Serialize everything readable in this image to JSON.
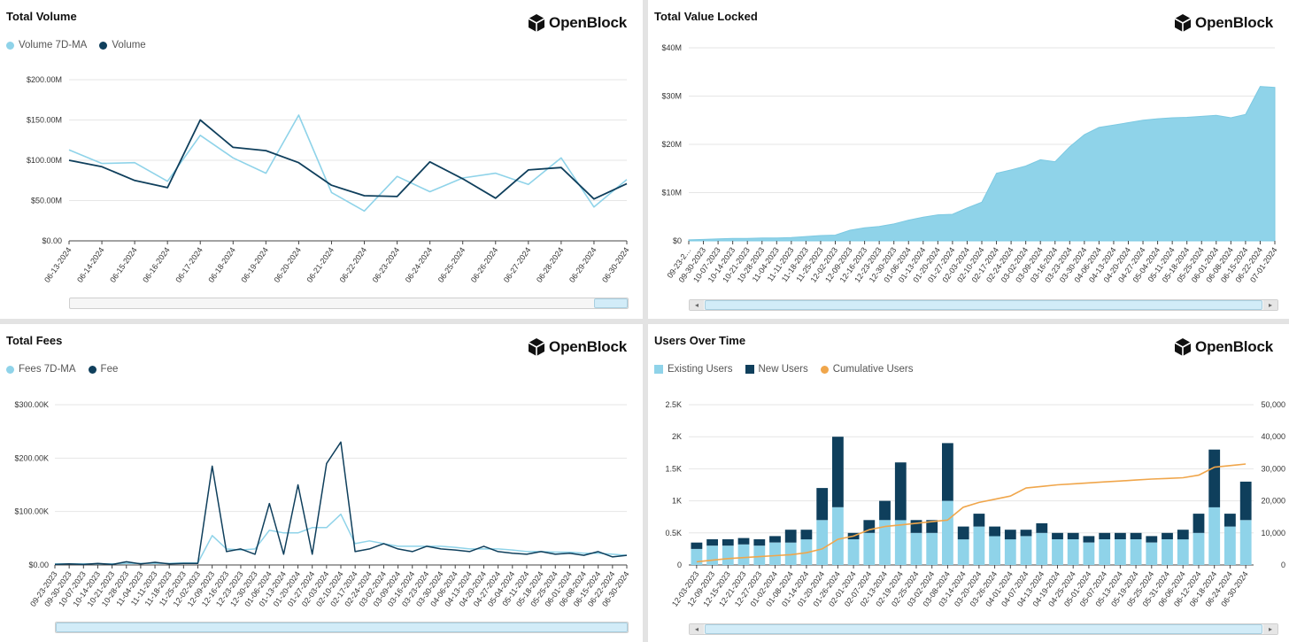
{
  "panels": {
    "volume": {
      "title": "Total Volume",
      "logo_text": "OpenBlock",
      "legend": [
        "Volume 7D-MA",
        "Volume"
      ]
    },
    "tvl": {
      "title": "Total Value Locked",
      "logo_text": "OpenBlock"
    },
    "fees": {
      "title": "Total Fees",
      "logo_text": "OpenBlock",
      "legend": [
        "Fees 7D-MA",
        "Fee"
      ]
    },
    "users": {
      "title": "Users Over Time",
      "logo_text": "OpenBlock",
      "legend": [
        "Existing Users",
        "New Users",
        "Cumulative Users"
      ]
    }
  },
  "colors": {
    "light": "#8fd3e9",
    "dark": "#0f3f5c",
    "orange": "#f0a64b",
    "grid": "#e6e6e6"
  },
  "chart_data": [
    {
      "type": "line",
      "title": "Total Volume",
      "x": [
        "06-13-2024",
        "06-14-2024",
        "06-15-2024",
        "06-16-2024",
        "06-17-2024",
        "06-18-2024",
        "06-19-2024",
        "06-20-2024",
        "06-21-2024",
        "06-22-2024",
        "06-23-2024",
        "06-24-2024",
        "06-25-2024",
        "06-26-2024",
        "06-27-2024",
        "06-28-2024",
        "06-29-2024",
        "06-30-2024"
      ],
      "yticks": [
        "$0.00",
        "$50.00M",
        "$100.00M",
        "$150.00M",
        "$200.00M"
      ],
      "ylim": [
        0,
        200
      ],
      "series": [
        {
          "name": "Volume 7D-MA",
          "values": [
            113,
            96,
            97,
            74,
            131,
            103,
            84,
            156,
            60,
            37,
            80,
            61,
            78,
            84,
            70,
            103,
            42,
            76
          ]
        },
        {
          "name": "Volume",
          "values": [
            100,
            92,
            75,
            66,
            150,
            116,
            112,
            97,
            69,
            56,
            55,
            98,
            77,
            53,
            88,
            91,
            52,
            71
          ]
        }
      ],
      "grid": true,
      "legend": "top-left"
    },
    {
      "type": "area",
      "title": "Total Value Locked",
      "x_labels": [
        "09-23-2…",
        "09-30-2023",
        "10-07-2023",
        "10-14-2023",
        "10-21-2023",
        "10-28-2023",
        "11-04-2023",
        "11-11-2023",
        "11-18-2023",
        "11-25-2023",
        "12-02-2023",
        "12-09-2023",
        "12-16-2023",
        "12-23-2023",
        "12-30-2023",
        "01-06-2024",
        "01-13-2024",
        "01-20-2024",
        "01-27-2024",
        "02-03-2024",
        "02-10-2024",
        "02-17-2024",
        "02-24-2024",
        "03-02-2024",
        "03-09-2024",
        "03-16-2024",
        "03-23-2024",
        "03-30-2024",
        "04-06-2024",
        "04-13-2024",
        "04-20-2024",
        "04-27-2024",
        "05-04-2024",
        "05-11-2024",
        "05-18-2024",
        "05-25-2024",
        "06-01-2024",
        "06-08-2024",
        "06-15-2024",
        "06-22-2024",
        "07-01-2024"
      ],
      "yticks": [
        "$0",
        "$10M",
        "$20M",
        "$30M",
        "$40M"
      ],
      "ylim": [
        0,
        40
      ],
      "values": [
        0.2,
        0.3,
        0.4,
        0.5,
        0.5,
        0.6,
        0.6,
        0.7,
        0.9,
        1.1,
        1.2,
        2.2,
        2.7,
        3.0,
        3.5,
        4.3,
        4.9,
        5.4,
        5.5,
        6.8,
        8.0,
        14.0,
        14.7,
        15.5,
        16.8,
        16.4,
        19.5,
        22.0,
        23.5,
        24.0,
        24.5,
        25.0,
        25.3,
        25.5,
        25.6,
        25.8,
        26.0,
        25.5,
        26.2,
        32.0,
        31.8
      ],
      "grid": true
    },
    {
      "type": "line",
      "title": "Total Fees",
      "x_labels": [
        "09-23-2023",
        "09-30-2023",
        "10-07-2023",
        "10-14-2023",
        "10-21-2023",
        "10-28-2023",
        "11-04-2023",
        "11-11-2023",
        "11-18-2023",
        "11-25-2023",
        "12-02-2023",
        "12-09-2023",
        "12-16-2023",
        "12-23-2023",
        "12-30-2023",
        "01-06-2024",
        "01-13-2024",
        "01-20-2024",
        "01-27-2024",
        "02-03-2024",
        "02-10-2024",
        "02-17-2024",
        "02-24-2024",
        "03-02-2024",
        "03-09-2024",
        "03-16-2024",
        "03-23-2024",
        "03-30-2024",
        "04-06-2024",
        "04-13-2024",
        "04-20-2024",
        "04-27-2024",
        "05-04-2024",
        "05-11-2024",
        "05-18-2024",
        "05-25-2024",
        "06-01-2024",
        "06-08-2024",
        "06-15-2024",
        "06-22-2024",
        "06-30-2024"
      ],
      "yticks": [
        "$0.00",
        "$100.00K",
        "$200.00K",
        "$300.00K"
      ],
      "ylim": [
        0,
        300
      ],
      "series": [
        {
          "name": "Fees 7D-MA",
          "values": [
            2,
            2,
            2,
            2,
            2,
            3,
            3,
            3,
            3,
            4,
            4,
            55,
            30,
            28,
            30,
            65,
            60,
            60,
            70,
            70,
            95,
            40,
            45,
            40,
            35,
            35,
            35,
            35,
            33,
            30,
            30,
            30,
            28,
            25,
            25,
            24,
            24,
            22,
            22,
            20,
            18
          ]
        },
        {
          "name": "Fee",
          "values": [
            1,
            2,
            1,
            3,
            1,
            6,
            2,
            5,
            2,
            3,
            3,
            185,
            25,
            30,
            20,
            115,
            20,
            150,
            20,
            190,
            230,
            25,
            30,
            40,
            30,
            25,
            35,
            30,
            28,
            25,
            35,
            25,
            22,
            20,
            25,
            20,
            22,
            18,
            25,
            15,
            18
          ]
        }
      ],
      "grid": true,
      "legend": "top-left"
    },
    {
      "type": "bar",
      "title": "Users Over Time",
      "x_labels": [
        "12-03-2023",
        "12-09-2023",
        "12-15-2023",
        "12-21-2023",
        "12-27-2023",
        "01-02-2024",
        "01-08-2024",
        "01-14-2024",
        "01-20-2024",
        "01-26-2024",
        "02-01-2024",
        "02-07-2024",
        "02-13-2024",
        "02-19-2024",
        "02-25-2024",
        "03-02-2024",
        "03-08-2024",
        "03-14-2024",
        "03-20-2024",
        "03-26-2024",
        "04-01-2024",
        "04-07-2024",
        "04-13-2024",
        "04-19-2024",
        "04-25-2024",
        "05-01-2024",
        "05-07-2024",
        "05-13-2024",
        "05-19-2024",
        "05-25-2024",
        "05-31-2024",
        "06-06-2024",
        "06-12-2024",
        "06-18-2024",
        "06-24-2024",
        "06-30-2024"
      ],
      "yticks_left": [
        "0",
        "0.5K",
        "1K",
        "1.5K",
        "2K",
        "2.5K"
      ],
      "yticks_right": [
        "0",
        "10,000",
        "20,000",
        "30,000",
        "40,000",
        "50,000"
      ],
      "ylim_left": [
        0,
        2.5
      ],
      "ylim_right": [
        0,
        50000
      ],
      "series": [
        {
          "name": "Existing Users",
          "values": [
            0.25,
            0.3,
            0.3,
            0.32,
            0.3,
            0.35,
            0.35,
            0.4,
            0.7,
            0.9,
            0.4,
            0.5,
            0.7,
            0.7,
            0.5,
            0.5,
            1.0,
            0.4,
            0.6,
            0.45,
            0.4,
            0.45,
            0.5,
            0.4,
            0.4,
            0.35,
            0.4,
            0.4,
            0.4,
            0.35,
            0.4,
            0.4,
            0.5,
            0.9,
            0.6,
            0.7
          ]
        },
        {
          "name": "New Users",
          "values": [
            0.1,
            0.1,
            0.1,
            0.1,
            0.1,
            0.1,
            0.2,
            0.15,
            0.5,
            1.1,
            0.1,
            0.2,
            0.3,
            0.9,
            0.2,
            0.2,
            0.9,
            0.2,
            0.2,
            0.15,
            0.15,
            0.1,
            0.15,
            0.1,
            0.1,
            0.1,
            0.1,
            0.1,
            0.1,
            0.1,
            0.1,
            0.15,
            0.3,
            0.9,
            0.2,
            0.6
          ]
        },
        {
          "name": "Cumulative Users",
          "values": [
            1000,
            1500,
            2000,
            2300,
            2600,
            2900,
            3200,
            3800,
            5000,
            8000,
            9000,
            11000,
            12000,
            12500,
            13000,
            13500,
            14000,
            18000,
            19500,
            20500,
            21500,
            24000,
            24500,
            25000,
            25300,
            25600,
            25900,
            26200,
            26500,
            26800,
            27000,
            27200,
            28000,
            30500,
            31000,
            31500
          ]
        }
      ],
      "legend": "top-left"
    }
  ]
}
